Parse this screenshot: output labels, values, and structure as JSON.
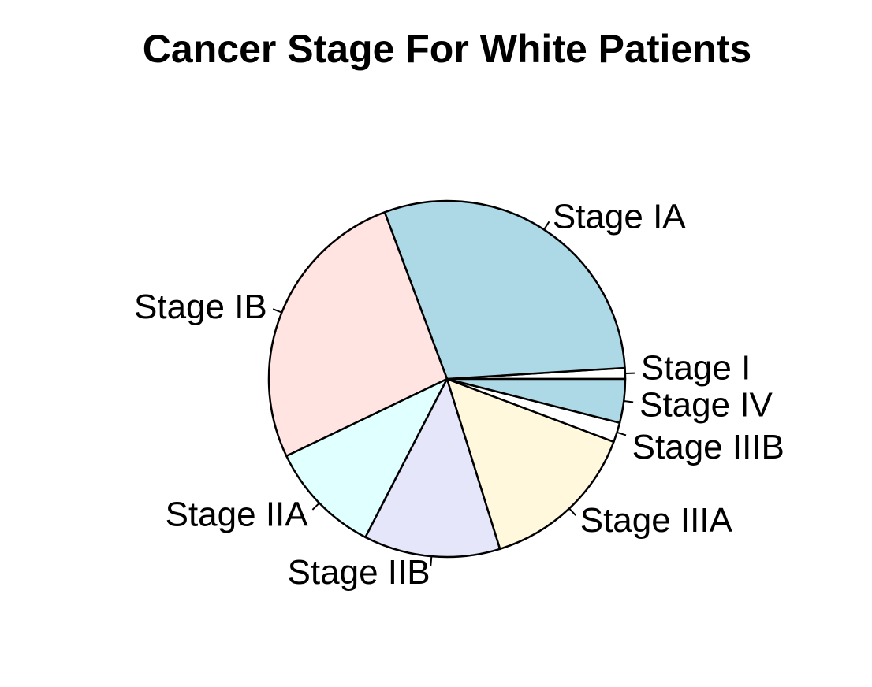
{
  "chart_data": {
    "type": "pie",
    "title": "Cancer Stage For White Patients",
    "clockwise": false,
    "start_angle_deg": 0,
    "slices": [
      {
        "label": "Stage I",
        "value": 1.0,
        "color": "#FFFFFF"
      },
      {
        "label": "Stage IA",
        "value": 30.0,
        "color": "#ADD8E6"
      },
      {
        "label": "Stage IB",
        "value": 26.7,
        "color": "#FFE4E1"
      },
      {
        "label": "Stage IIA",
        "value": 10.4,
        "color": "#E0FFFF"
      },
      {
        "label": "Stage IIB",
        "value": 12.5,
        "color": "#E6E6FA"
      },
      {
        "label": "Stage IIIA",
        "value": 14.6,
        "color": "#FFF8DC"
      },
      {
        "label": "Stage IIIB",
        "value": 1.8,
        "color": "#FFFFFF"
      },
      {
        "label": "Stage IV",
        "value": 4.0,
        "color": "#ADD8E6"
      }
    ]
  }
}
